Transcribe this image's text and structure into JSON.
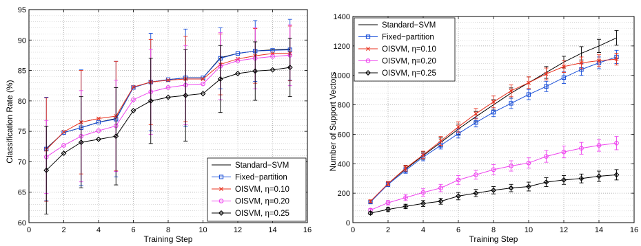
{
  "chart_data": [
    {
      "type": "line",
      "xlabel": "Training Step",
      "ylabel": "Classification Rate (%)",
      "xlim": [
        0,
        16
      ],
      "ylim": [
        60,
        95
      ],
      "xticks": [
        0,
        2,
        4,
        6,
        8,
        10,
        12,
        14,
        16
      ],
      "yticks": [
        60,
        65,
        70,
        75,
        80,
        85,
        90,
        95
      ],
      "grid": true,
      "legend_position": "bottom-right",
      "x": [
        1,
        2,
        3,
        4,
        5,
        6,
        7,
        8,
        9,
        10,
        11,
        12,
        13,
        14,
        15
      ],
      "series": [
        {
          "name": "Standard−SVM",
          "color": "#000000",
          "marker": "none",
          "values": [
            72.2,
            74.8,
            75.6,
            76.5,
            77.1,
            82.2,
            83.1,
            83.5,
            83.8,
            83.8,
            87.1,
            87.8,
            88.2,
            88.4,
            88.5
          ],
          "err": [
            0,
            0,
            0,
            0,
            0,
            0,
            0,
            0,
            0,
            0,
            0,
            0,
            0,
            0,
            0
          ]
        },
        {
          "name": "Fixed−partition",
          "color": "#1a4fd8",
          "marker": "square",
          "values": [
            72.1,
            74.8,
            75.6,
            76.5,
            77.0,
            82.2,
            83.1,
            83.5,
            83.8,
            83.8,
            87.0,
            87.8,
            88.2,
            88.3,
            88.4
          ],
          "err": [
            8.5,
            0,
            9.5,
            0,
            9.5,
            0,
            8.0,
            0,
            8.0,
            0,
            5.0,
            0,
            5.0,
            0,
            5.0
          ]
        },
        {
          "name": "OISVM, η=0.10",
          "color": "#e8321e",
          "marker": "x",
          "values": [
            72.0,
            74.9,
            76.5,
            77.1,
            77.5,
            82.3,
            83.1,
            83.4,
            83.6,
            83.6,
            86.0,
            86.9,
            87.4,
            87.8,
            87.8
          ],
          "err": [
            8.5,
            0,
            8.5,
            0,
            9.0,
            0,
            7.0,
            0,
            7.0,
            0,
            5.0,
            0,
            4.5,
            0,
            4.5
          ]
        },
        {
          "name": "OISVM, η=0.20",
          "color": "#ee44ee",
          "marker": "circle",
          "values": [
            70.8,
            72.7,
            74.2,
            75.1,
            75.9,
            80.2,
            81.5,
            82.2,
            82.6,
            82.8,
            85.7,
            86.6,
            87.0,
            87.3,
            87.5
          ],
          "err": [
            6.0,
            0,
            7.5,
            0,
            7.5,
            0,
            7.0,
            0,
            6.5,
            0,
            5.5,
            0,
            5.0,
            0,
            5.0
          ]
        },
        {
          "name": "OISVM, η=0.25",
          "color": "#000000",
          "marker": "diamond",
          "values": [
            68.6,
            71.4,
            73.2,
            73.7,
            74.2,
            78.4,
            80.0,
            80.6,
            80.9,
            81.2,
            83.6,
            84.5,
            84.9,
            85.1,
            85.5
          ],
          "err": [
            7.2,
            0,
            7.5,
            0,
            8.0,
            0,
            7.0,
            0,
            7.5,
            0,
            5.5,
            0,
            4.8,
            0,
            4.8
          ]
        }
      ]
    },
    {
      "type": "line",
      "xlabel": "Training Step",
      "ylabel": "Number of Support Vectors",
      "xlim": [
        0,
        16
      ],
      "ylim": [
        0,
        1400
      ],
      "xticks": [
        0,
        2,
        4,
        6,
        8,
        10,
        12,
        14,
        16
      ],
      "yticks": [
        0,
        200,
        400,
        600,
        800,
        1000,
        1200,
        1400
      ],
      "grid": true,
      "legend_position": "top-left",
      "x": [
        1,
        2,
        3,
        4,
        5,
        6,
        7,
        8,
        9,
        10,
        11,
        12,
        13,
        14,
        15
      ],
      "series": [
        {
          "name": "Standard−SVM",
          "color": "#000000",
          "marker": "none",
          "values": [
            140,
            265,
            365,
            455,
            545,
            635,
            720,
            800,
            880,
            950,
            1020,
            1090,
            1150,
            1200,
            1255
          ],
          "err": [
            10,
            15,
            20,
            25,
            30,
            35,
            35,
            35,
            35,
            40,
            40,
            40,
            45,
            45,
            50
          ]
        },
        {
          "name": "Fixed−partition",
          "color": "#1a4fd8",
          "marker": "square",
          "values": [
            140,
            260,
            355,
            445,
            525,
            605,
            680,
            750,
            810,
            870,
            925,
            985,
            1040,
            1085,
            1125
          ],
          "err": [
            10,
            15,
            20,
            25,
            25,
            30,
            30,
            30,
            35,
            35,
            35,
            40,
            40,
            40,
            45
          ]
        },
        {
          "name": "OISVM, η=0.10",
          "color": "#e8321e",
          "marker": "x",
          "values": [
            145,
            265,
            370,
            460,
            555,
            650,
            740,
            820,
            895,
            950,
            1010,
            1060,
            1085,
            1100,
            1110
          ],
          "err": [
            10,
            15,
            20,
            25,
            30,
            35,
            35,
            40,
            40,
            40,
            40,
            40,
            40,
            40,
            40
          ]
        },
        {
          "name": "OISVM, η=0.20",
          "color": "#ee44ee",
          "marker": "circle",
          "values": [
            85,
            135,
            170,
            205,
            235,
            290,
            325,
            360,
            385,
            405,
            450,
            480,
            505,
            525,
            540
          ],
          "err": [
            10,
            15,
            20,
            25,
            25,
            30,
            30,
            35,
            35,
            35,
            40,
            40,
            40,
            40,
            45
          ]
        },
        {
          "name": "OISVM, η=0.25",
          "color": "#000000",
          "marker": "diamond",
          "values": [
            65,
            90,
            110,
            130,
            145,
            180,
            200,
            220,
            235,
            245,
            275,
            290,
            300,
            315,
            325
          ],
          "err": [
            10,
            15,
            15,
            20,
            20,
            25,
            25,
            25,
            25,
            30,
            30,
            30,
            30,
            35,
            35
          ]
        }
      ]
    }
  ]
}
